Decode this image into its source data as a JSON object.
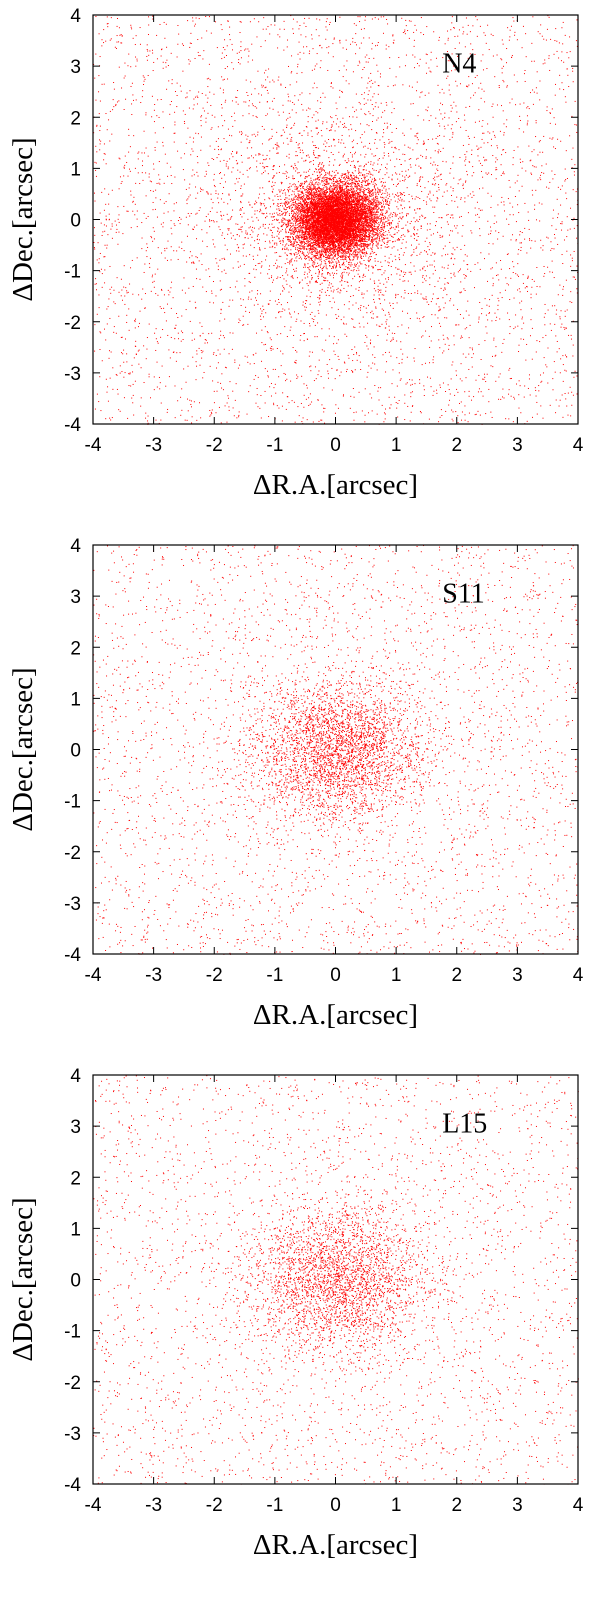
{
  "chart_data": [
    {
      "type": "scatter",
      "label": "N4",
      "xlabel": "ΔR.A.[arcsec]",
      "ylabel": "ΔDec.[arcsec]",
      "xlim": [
        -4,
        4
      ],
      "ylim": [
        -4,
        4
      ],
      "xticks": [
        "-4",
        "-3",
        "-2",
        "-1",
        "0",
        "1",
        "2",
        "3",
        "4"
      ],
      "yticks": [
        "-4",
        "-3",
        "-2",
        "-1",
        "0",
        "1",
        "2",
        "3",
        "4"
      ],
      "point_color": "#ff0000",
      "grid": false,
      "series": [
        {
          "center": [
            0.0,
            0.0
          ],
          "sigma": 0.35,
          "n_core": 9000
        },
        {
          "center": [
            0.0,
            0.0
          ],
          "sigma": 1.0,
          "n_core": 1500
        },
        {
          "uniform": true,
          "n": 3500
        }
      ]
    },
    {
      "type": "scatter",
      "label": "S11",
      "xlabel": "ΔR.A.[arcsec]",
      "ylabel": "ΔDec.[arcsec]",
      "xlim": [
        -4,
        4
      ],
      "ylim": [
        -4,
        4
      ],
      "xticks": [
        "-4",
        "-3",
        "-2",
        "-1",
        "0",
        "1",
        "2",
        "3",
        "4"
      ],
      "yticks": [
        "-4",
        "-3",
        "-2",
        "-1",
        "0",
        "1",
        "2",
        "3",
        "4"
      ],
      "point_color": "#ff0000",
      "grid": false,
      "series": [
        {
          "center": [
            0.0,
            0.0
          ],
          "sigma": 0.7,
          "n_core": 3200
        },
        {
          "uniform": true,
          "n": 3000
        }
      ]
    },
    {
      "type": "scatter",
      "label": "L15",
      "xlabel": "ΔR.A.[arcsec]",
      "ylabel": "ΔDec.[arcsec]",
      "xlim": [
        -4,
        4
      ],
      "ylim": [
        -4,
        4
      ],
      "xticks": [
        "-4",
        "-3",
        "-2",
        "-1",
        "0",
        "1",
        "2",
        "3",
        "4"
      ],
      "yticks": [
        "-4",
        "-3",
        "-2",
        "-1",
        "0",
        "1",
        "2",
        "3",
        "4"
      ],
      "point_color": "#ff0000",
      "grid": false,
      "series": [
        {
          "center": [
            0.0,
            0.0
          ],
          "sigma": 0.75,
          "n_core": 2800
        },
        {
          "uniform": true,
          "n": 2800
        }
      ]
    }
  ]
}
